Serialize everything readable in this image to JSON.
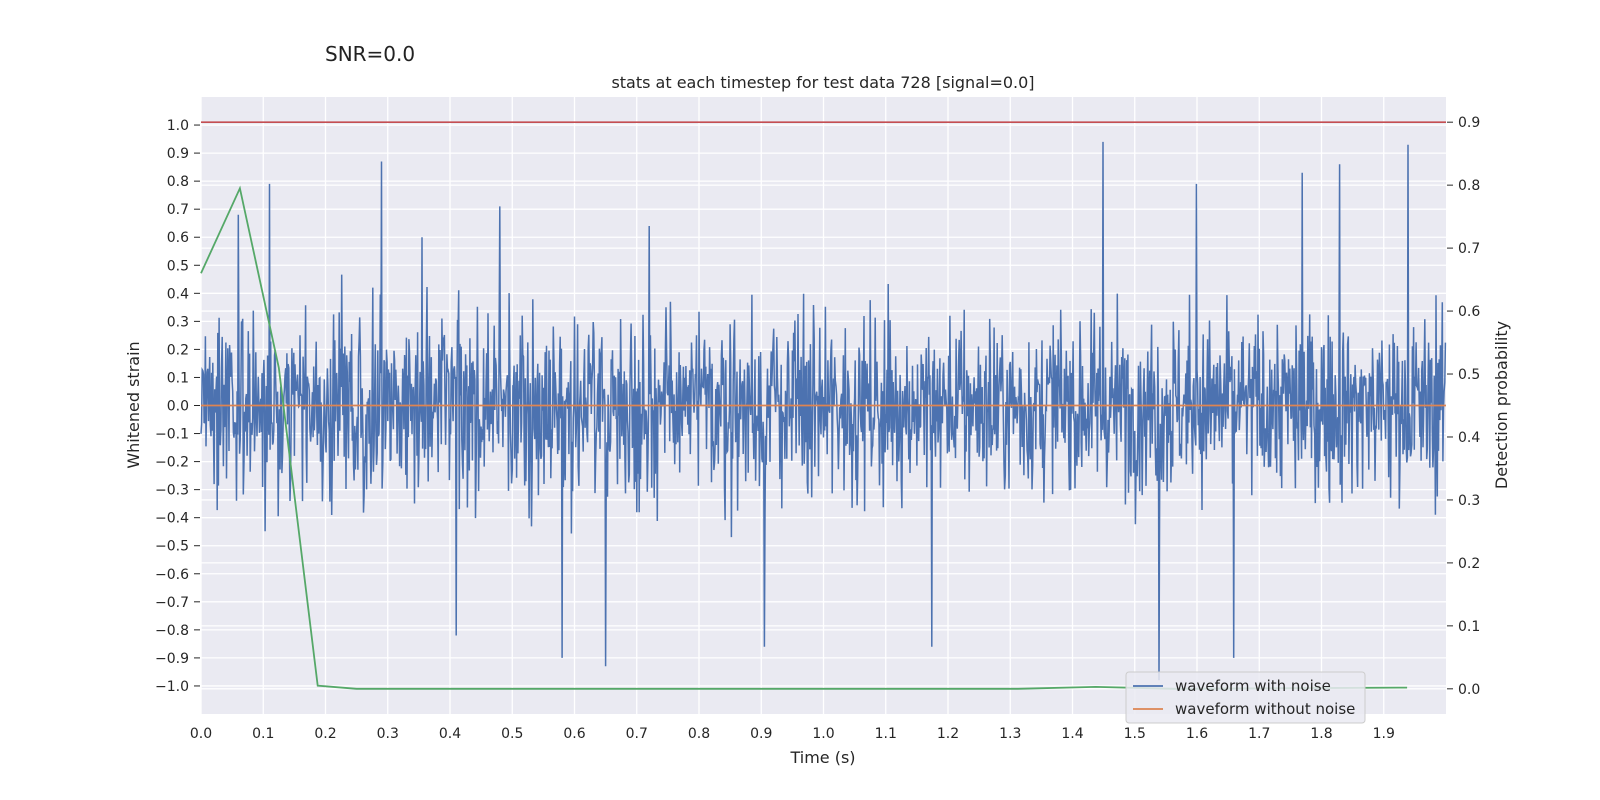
{
  "figure": {
    "suptitle": "SNR=0.0"
  },
  "chart_data": {
    "type": "line",
    "title": "stats at each timestep for test data 728 [signal=0.0]",
    "xlabel": "Time (s)",
    "ylabel": "Whitened strain",
    "y2label": "Detection probability",
    "xlim": [
      0.0,
      2.0
    ],
    "ylim": [
      -1.1,
      1.1
    ],
    "y2lim": [
      -0.04,
      0.94
    ],
    "xticks": [
      0.0,
      0.1,
      0.2,
      0.3,
      0.4,
      0.5,
      0.6,
      0.7,
      0.8,
      0.9,
      1.0,
      1.1,
      1.2,
      1.3,
      1.4,
      1.5,
      1.6,
      1.7,
      1.8,
      1.9
    ],
    "xtick_labels": [
      "0.0",
      "0.1",
      "0.2",
      "0.3",
      "0.4",
      "0.5",
      "0.6",
      "0.7",
      "0.8",
      "0.9",
      "1.0",
      "1.1",
      "1.2",
      "1.3",
      "1.4",
      "1.5",
      "1.6",
      "1.7",
      "1.8",
      "1.9"
    ],
    "yticks": [
      1.0,
      0.9,
      0.8,
      0.7,
      0.6,
      0.5,
      0.4,
      0.3,
      0.2,
      0.1,
      0.0,
      -0.1,
      -0.2,
      -0.3,
      -0.4,
      -0.5,
      -0.6,
      -0.7,
      -0.8,
      -0.9,
      -1.0
    ],
    "ytick_labels": [
      "1.0",
      "0.9",
      "0.8",
      "0.7",
      "0.6",
      "0.5",
      "0.4",
      "0.3",
      "0.2",
      "0.1",
      "0.0",
      "−0.1",
      "−0.2",
      "−0.3",
      "−0.4",
      "−0.5",
      "−0.6",
      "−0.7",
      "−0.8",
      "−0.9",
      "−1.0"
    ],
    "y2ticks": [
      0.0,
      0.1,
      0.2,
      0.3,
      0.4,
      0.5,
      0.6,
      0.7,
      0.8,
      0.9
    ],
    "y2tick_labels": [
      "0.0",
      "0.1",
      "0.2",
      "0.3",
      "0.4",
      "0.5",
      "0.6",
      "0.7",
      "0.8",
      "0.9"
    ],
    "grid": true,
    "legend_position": "bottom-right",
    "series": [
      {
        "name": "waveform with noise",
        "axis": "left",
        "color": "#4c72b0",
        "note": "dense noise, mostly within -0.5..0.5, peaks up to ~0.94 and down to ~-0.98",
        "spikes_x": [
          0.06,
          0.11,
          0.29,
          0.355,
          0.41,
          0.48,
          0.58,
          0.65,
          0.72,
          0.905,
          1.175,
          1.45,
          1.54,
          1.6,
          1.66,
          1.77,
          1.83,
          1.94
        ],
        "spikes_y": [
          0.68,
          0.79,
          0.87,
          0.6,
          -0.82,
          0.71,
          -0.9,
          -0.93,
          0.64,
          -0.86,
          -0.86,
          0.94,
          -0.98,
          0.79,
          -0.9,
          0.83,
          0.86,
          0.93
        ]
      },
      {
        "name": "waveform without noise",
        "axis": "left",
        "color": "#dd8452",
        "x": [
          0.0,
          2.0
        ],
        "y": [
          0.0,
          0.0
        ]
      },
      {
        "name": "detection probability",
        "axis": "right",
        "color": "#55a868",
        "x": [
          0.0,
          0.0625,
          0.125,
          0.1875,
          0.25,
          0.3125,
          1.3125,
          1.4375,
          1.5625,
          1.9375
        ],
        "y": [
          0.66,
          0.795,
          0.51,
          0.005,
          0.0,
          0.0,
          0.0,
          0.003,
          0.0,
          0.002
        ]
      },
      {
        "name": "threshold",
        "axis": "right",
        "color": "#c44e52",
        "x": [
          0.0,
          2.0
        ],
        "y": [
          0.9,
          0.9
        ]
      }
    ],
    "legend": [
      "waveform with noise",
      "waveform without noise"
    ]
  }
}
